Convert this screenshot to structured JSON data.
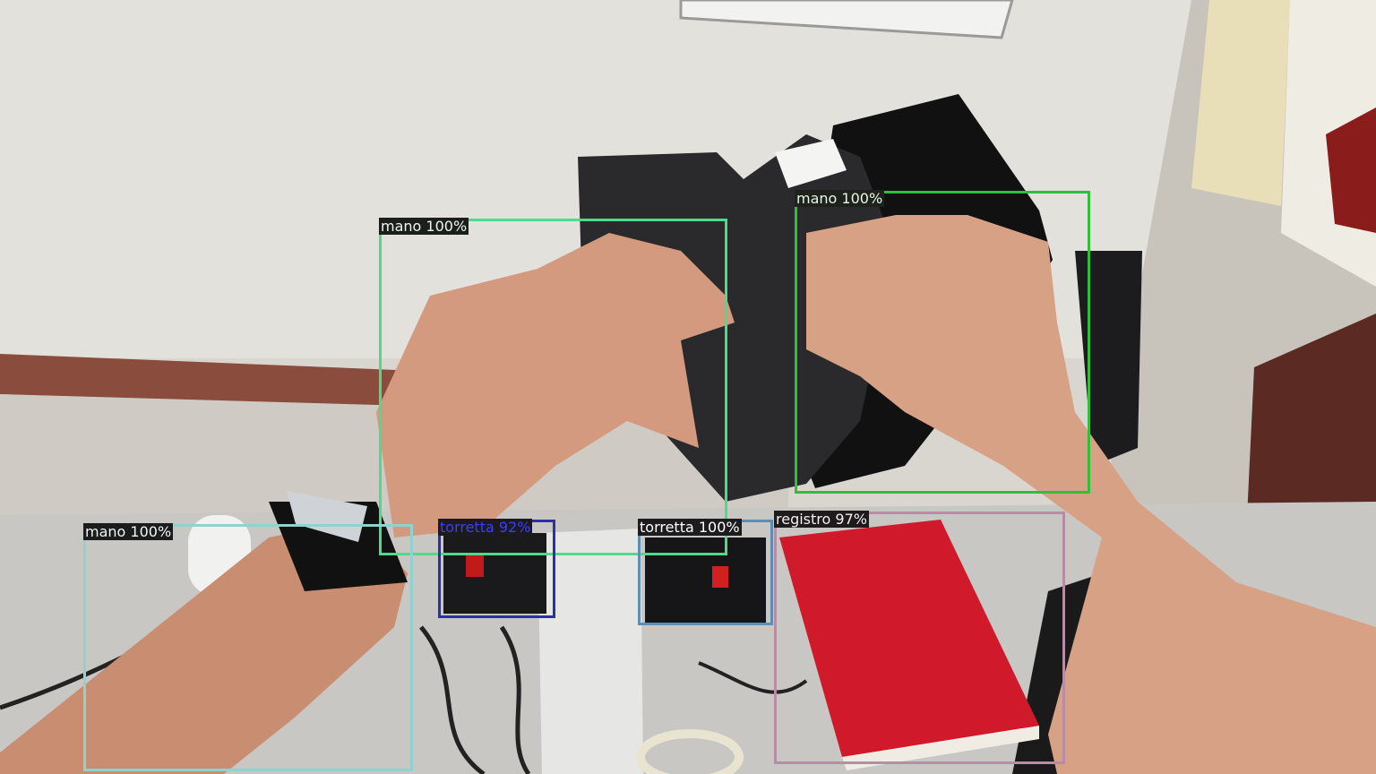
{
  "detections": [
    {
      "label": "mano 100%",
      "box_color": "#4fd98b",
      "label_bg": "#1b1f1c",
      "label_color": "#eef5ef"
    },
    {
      "label": "mano 100%",
      "box_color": "#2fbf3a",
      "label_bg": "#1d221d",
      "label_color": "#e7f5e6"
    },
    {
      "label": "mano 100%",
      "box_color": "#8fd3cf",
      "label_bg": "#1b1c1e",
      "label_color": "#f4f4f4"
    },
    {
      "label": "torretta 92%",
      "box_color": "#2d2fa8",
      "label_bg": "#1b1b1f",
      "label_color": "#3c3cff"
    },
    {
      "label": "torretta 100%",
      "box_color": "#5c8fb3",
      "label_bg": "#1c1c1e",
      "label_color": "#ffffff"
    },
    {
      "label": "registro 97%",
      "box_color": "#b98ca3",
      "label_bg": "#1d1b1c",
      "label_color": "#f4eef1"
    }
  ]
}
